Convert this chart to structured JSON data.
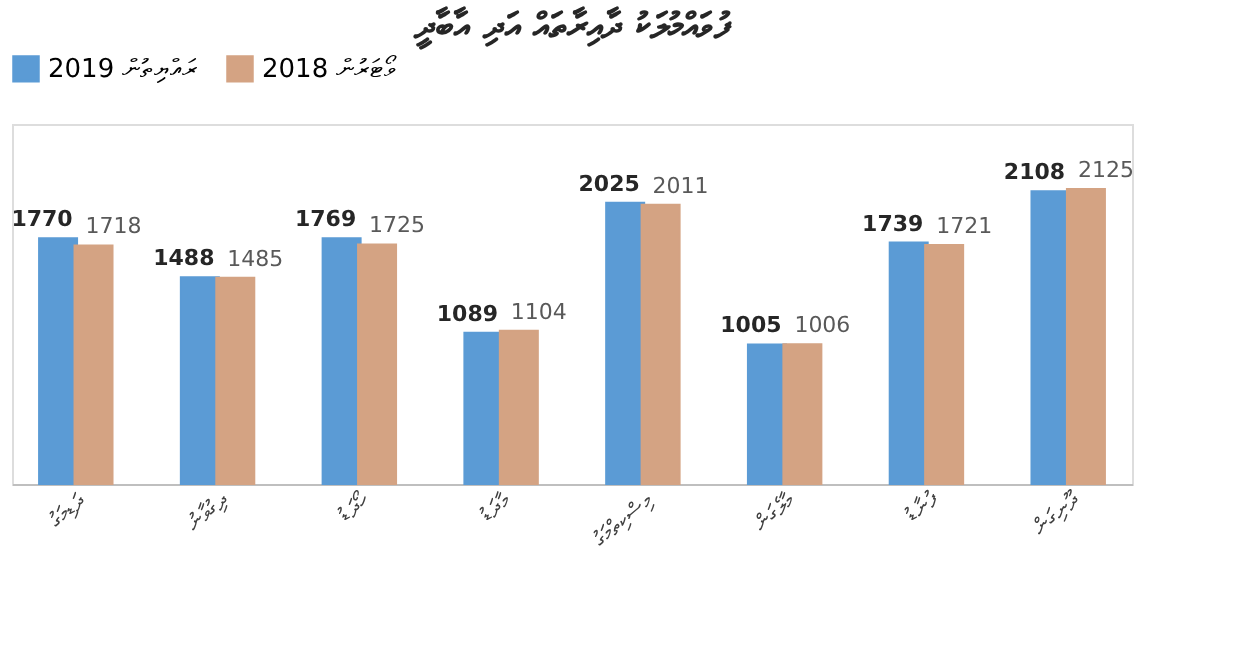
{
  "chart_data": {
    "type": "bar",
    "title": "ފުވައްމުލަކު ދާއިރާތައް އަދި އާބާދީ",
    "categories": [
      "ދަޑިމަގު",
      "ދިގުވާނު",
      "ހޯދަޑު",
      "މާދަޑު",
      "މިސްކިތްމަގު",
      "މާލެގަން",
      "ފުނާޑު",
      "ދޫނިގަން"
    ],
    "series": [
      {
        "name": "ރައްޔިތުން 2019",
        "color": "#5b9bd5",
        "values": [
          1770,
          1488,
          1769,
          1089,
          2025,
          1005,
          1739,
          2108
        ]
      },
      {
        "name": "ވޯޓަރުން 2018",
        "color": "#d4a383",
        "values": [
          1718,
          1485,
          1725,
          1104,
          2011,
          1006,
          1721,
          2125
        ]
      }
    ],
    "data_labels": true,
    "legend": "top",
    "grid": false,
    "tick_labels": "x"
  }
}
